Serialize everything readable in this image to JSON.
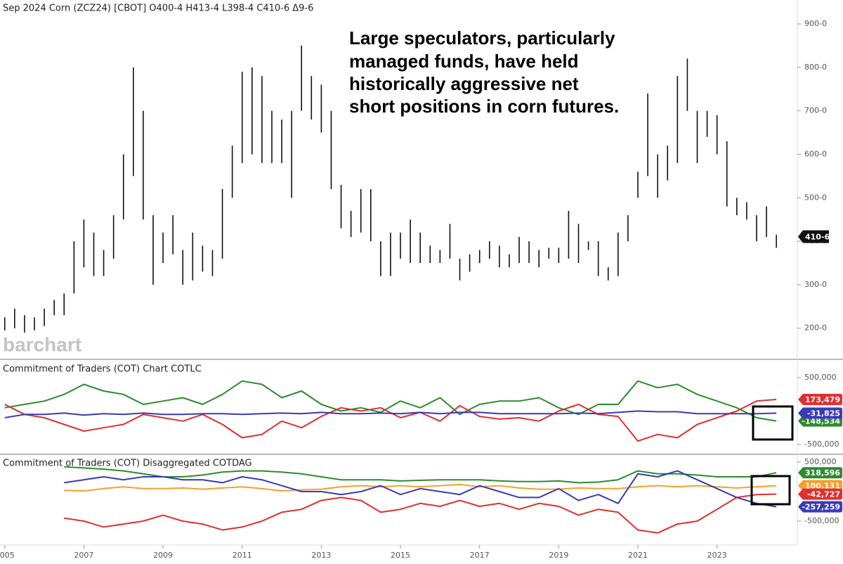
{
  "chart_data": [
    {
      "type": "ohlc",
      "title": "Sep 2024 Corn (ZCZ24) [CBOT] O400-4 H413-4 L398-4 C410-6 Δ9-6",
      "annotation": [
        "Large speculators, particularly",
        "managed funds, have held",
        "historically aggressive net",
        "short positions in corn futures."
      ],
      "watermark": "barchart",
      "color": "#111111",
      "x": [
        2005.0,
        2005.25,
        2005.5,
        2005.75,
        2006.0,
        2006.25,
        2006.5,
        2006.75,
        2007.0,
        2007.25,
        2007.5,
        2007.75,
        2008.0,
        2008.25,
        2008.5,
        2008.75,
        2009.0,
        2009.25,
        2009.5,
        2009.75,
        2010.0,
        2010.25,
        2010.5,
        2010.75,
        2011.0,
        2011.25,
        2011.5,
        2011.75,
        2012.0,
        2012.25,
        2012.5,
        2012.75,
        2013.0,
        2013.25,
        2013.5,
        2013.75,
        2014.0,
        2014.25,
        2014.5,
        2014.75,
        2015.0,
        2015.25,
        2015.5,
        2015.75,
        2016.0,
        2016.25,
        2016.5,
        2016.75,
        2017.0,
        2017.25,
        2017.5,
        2017.75,
        2018.0,
        2018.25,
        2018.5,
        2018.75,
        2019.0,
        2019.25,
        2019.5,
        2019.75,
        2020.0,
        2020.25,
        2020.5,
        2020.75,
        2021.0,
        2021.25,
        2021.5,
        2021.75,
        2022.0,
        2022.25,
        2022.5,
        2022.75,
        2023.0,
        2023.25,
        2023.5,
        2023.75,
        2024.0,
        2024.25,
        2024.5
      ],
      "high": [
        225,
        245,
        230,
        225,
        245,
        265,
        280,
        400,
        450,
        420,
        380,
        460,
        600,
        800,
        700,
        460,
        420,
        460,
        380,
        420,
        390,
        380,
        520,
        620,
        790,
        800,
        780,
        700,
        680,
        700,
        850,
        780,
        760,
        700,
        530,
        470,
        520,
        520,
        400,
        420,
        420,
        450,
        420,
        390,
        380,
        440,
        360,
        370,
        380,
        400,
        390,
        370,
        410,
        400,
        380,
        385,
        385,
        470,
        440,
        400,
        400,
        340,
        420,
        460,
        560,
        740,
        600,
        620,
        780,
        820,
        700,
        700,
        690,
        630,
        500,
        490,
        460,
        480,
        415
      ],
      "low": [
        195,
        200,
        190,
        195,
        205,
        230,
        230,
        280,
        340,
        320,
        320,
        360,
        450,
        550,
        450,
        300,
        350,
        370,
        300,
        310,
        330,
        320,
        360,
        500,
        580,
        600,
        580,
        580,
        580,
        500,
        700,
        680,
        650,
        520,
        430,
        410,
        420,
        400,
        320,
        320,
        360,
        350,
        350,
        350,
        350,
        360,
        310,
        330,
        350,
        360,
        340,
        340,
        350,
        350,
        340,
        360,
        350,
        360,
        350,
        380,
        320,
        310,
        320,
        400,
        500,
        550,
        500,
        540,
        580,
        700,
        580,
        640,
        600,
        480,
        460,
        450,
        400,
        410,
        385
      ],
      "last_price": {
        "value": 410.75,
        "label": "410-6"
      },
      "xlim": [
        2004.88,
        2025.03
      ],
      "ylim": [
        130,
        955
      ],
      "yticks": [
        {
          "value": 200,
          "label": "200-0"
        },
        {
          "value": 300,
          "label": "300-0"
        },
        {
          "value": 400,
          "label": "400-0"
        },
        {
          "value": 500,
          "label": "500-0"
        },
        {
          "value": 600,
          "label": "600-0"
        },
        {
          "value": 700,
          "label": "700-0"
        },
        {
          "value": 800,
          "label": "800-0"
        },
        {
          "value": 900,
          "label": "900-0"
        }
      ]
    },
    {
      "type": "line",
      "title": "Commitment of Traders (COT) Chart COTLC",
      "x": [
        2005.0,
        2005.5,
        2006.0,
        2006.5,
        2007.0,
        2007.5,
        2008.0,
        2008.5,
        2009.0,
        2009.5,
        2010.0,
        2010.5,
        2011.0,
        2011.5,
        2012.0,
        2012.5,
        2013.0,
        2013.5,
        2014.0,
        2014.5,
        2015.0,
        2015.5,
        2016.0,
        2016.5,
        2017.0,
        2017.5,
        2018.0,
        2018.5,
        2019.0,
        2019.5,
        2020.0,
        2020.5,
        2021.0,
        2021.5,
        2022.0,
        2022.5,
        2023.0,
        2023.5,
        2024.0,
        2024.5
      ],
      "series": [
        {
          "color": "#2e8b2e",
          "values": [
            50000,
            100000,
            150000,
            250000,
            400000,
            300000,
            250000,
            100000,
            150000,
            200000,
            100000,
            250000,
            450000,
            400000,
            200000,
            300000,
            100000,
            0,
            50000,
            -20000,
            150000,
            50000,
            200000,
            -50000,
            100000,
            150000,
            150000,
            200000,
            50000,
            -50000,
            100000,
            100000,
            450000,
            350000,
            400000,
            250000,
            150000,
            50000,
            -100000,
            -148534
          ],
          "value_labels": [
            null,
            null,
            null,
            null,
            null,
            null,
            null,
            null,
            null,
            null,
            null,
            null,
            null,
            null,
            null,
            null,
            null,
            null,
            null,
            null,
            null,
            null,
            null,
            null,
            null,
            null,
            null,
            null,
            null,
            null,
            null,
            null,
            null,
            null,
            null,
            null,
            null,
            null,
            null,
            "-148,534"
          ]
        },
        {
          "color": "#e03030",
          "values": [
            100000,
            -50000,
            -100000,
            -200000,
            -300000,
            -250000,
            -200000,
            -50000,
            -100000,
            -150000,
            -50000,
            -200000,
            -400000,
            -350000,
            -150000,
            -250000,
            -80000,
            50000,
            0,
            50000,
            -100000,
            -20000,
            -150000,
            80000,
            -80000,
            -120000,
            -100000,
            -150000,
            0,
            100000,
            -50000,
            -80000,
            -450000,
            -350000,
            -400000,
            -200000,
            -100000,
            0,
            150000,
            173479
          ],
          "value_labels": [
            null,
            null,
            null,
            null,
            null,
            null,
            null,
            null,
            null,
            null,
            null,
            null,
            null,
            null,
            null,
            null,
            null,
            null,
            null,
            null,
            null,
            null,
            null,
            null,
            null,
            null,
            null,
            null,
            null,
            null,
            null,
            null,
            null,
            null,
            null,
            null,
            null,
            null,
            null,
            "173,479"
          ]
        },
        {
          "color": "#3a3ab8",
          "values": [
            -100000,
            -50000,
            -50000,
            -30000,
            -60000,
            -40000,
            -50000,
            -30000,
            -50000,
            -50000,
            -40000,
            -40000,
            -50000,
            -40000,
            -30000,
            -40000,
            -20000,
            -40000,
            -40000,
            -30000,
            -40000,
            -20000,
            -40000,
            -20000,
            -20000,
            -40000,
            -40000,
            -40000,
            -40000,
            -30000,
            -40000,
            -20000,
            0,
            -10000,
            -10000,
            -40000,
            -40000,
            -40000,
            -40000,
            -31825
          ],
          "value_labels": [
            null,
            null,
            null,
            null,
            null,
            null,
            null,
            null,
            null,
            null,
            null,
            null,
            null,
            null,
            null,
            null,
            null,
            null,
            null,
            null,
            null,
            null,
            null,
            null,
            null,
            null,
            null,
            null,
            null,
            null,
            null,
            null,
            null,
            null,
            null,
            null,
            null,
            null,
            null,
            "-31,825"
          ]
        }
      ],
      "xlim": [
        2004.88,
        2025.03
      ],
      "ylim": [
        -637000,
        753000
      ],
      "yticks": [
        {
          "value": -500000,
          "label": "-500,000"
        },
        {
          "value": 500000,
          "label": "500,000"
        }
      ]
    },
    {
      "type": "line",
      "title": "Commitment of Traders (COT) Disaggregated COTDAG",
      "x": [
        2006.5,
        2007.0,
        2007.5,
        2008.0,
        2008.5,
        2009.0,
        2009.5,
        2010.0,
        2010.5,
        2011.0,
        2011.5,
        2012.0,
        2012.5,
        2013.0,
        2013.5,
        2014.0,
        2014.5,
        2015.0,
        2015.5,
        2016.0,
        2016.5,
        2017.0,
        2017.5,
        2018.0,
        2018.5,
        2019.0,
        2019.5,
        2020.0,
        2020.5,
        2021.0,
        2021.5,
        2022.0,
        2022.5,
        2023.0,
        2023.5,
        2024.0,
        2024.5
      ],
      "series": [
        {
          "color": "#2e8b2e",
          "values": [
            420000,
            400000,
            380000,
            350000,
            300000,
            250000,
            250000,
            280000,
            330000,
            350000,
            350000,
            330000,
            300000,
            250000,
            200000,
            200000,
            200000,
            180000,
            190000,
            200000,
            200000,
            200000,
            180000,
            170000,
            170000,
            180000,
            150000,
            160000,
            200000,
            350000,
            300000,
            300000,
            280000,
            250000,
            250000,
            250000,
            318596
          ],
          "value_labels": [
            null,
            null,
            null,
            null,
            null,
            null,
            null,
            null,
            null,
            null,
            null,
            null,
            null,
            null,
            null,
            null,
            null,
            null,
            null,
            null,
            null,
            null,
            null,
            null,
            null,
            null,
            null,
            null,
            null,
            null,
            null,
            null,
            null,
            null,
            null,
            null,
            "318,596"
          ]
        },
        {
          "color": "#f5a030",
          "values": [
            20000,
            10000,
            50000,
            80000,
            50000,
            50000,
            60000,
            40000,
            60000,
            80000,
            50000,
            10000,
            30000,
            40000,
            80000,
            100000,
            80000,
            100000,
            80000,
            100000,
            120000,
            80000,
            100000,
            60000,
            40000,
            40000,
            60000,
            50000,
            50000,
            80000,
            100000,
            80000,
            100000,
            80000,
            60000,
            80000,
            100131
          ],
          "value_labels": [
            null,
            null,
            null,
            null,
            null,
            null,
            null,
            null,
            null,
            null,
            null,
            null,
            null,
            null,
            null,
            null,
            null,
            null,
            null,
            null,
            null,
            null,
            null,
            null,
            null,
            null,
            null,
            null,
            null,
            null,
            null,
            null,
            null,
            null,
            null,
            null,
            "100,131"
          ]
        },
        {
          "color": "#e03030",
          "values": [
            -450000,
            -500000,
            -600000,
            -550000,
            -500000,
            -400000,
            -500000,
            -550000,
            -650000,
            -600000,
            -500000,
            -350000,
            -300000,
            -150000,
            -100000,
            -150000,
            -350000,
            -300000,
            -200000,
            -250000,
            -150000,
            -250000,
            -200000,
            -300000,
            -200000,
            -250000,
            -400000,
            -300000,
            -350000,
            -650000,
            -700000,
            -550000,
            -500000,
            -300000,
            -100000,
            -50000,
            -42727
          ],
          "value_labels": [
            null,
            null,
            null,
            null,
            null,
            null,
            null,
            null,
            null,
            null,
            null,
            null,
            null,
            null,
            null,
            null,
            null,
            null,
            null,
            null,
            null,
            null,
            null,
            null,
            null,
            null,
            null,
            null,
            null,
            null,
            null,
            null,
            null,
            null,
            null,
            null,
            "-42,727"
          ]
        },
        {
          "color": "#3a3ab8",
          "values": [
            150000,
            200000,
            250000,
            200000,
            250000,
            250000,
            200000,
            200000,
            150000,
            250000,
            200000,
            100000,
            0,
            0,
            -50000,
            0,
            100000,
            -50000,
            50000,
            0,
            -50000,
            100000,
            0,
            -100000,
            -100000,
            50000,
            -150000,
            -50000,
            -200000,
            300000,
            250000,
            350000,
            200000,
            50000,
            -100000,
            -200000,
            -257259
          ],
          "value_labels": [
            null,
            null,
            null,
            null,
            null,
            null,
            null,
            null,
            null,
            null,
            null,
            null,
            null,
            null,
            null,
            null,
            null,
            null,
            null,
            null,
            null,
            null,
            null,
            null,
            null,
            null,
            null,
            null,
            null,
            null,
            null,
            null,
            null,
            null,
            null,
            null,
            "-257,259"
          ]
        }
      ],
      "xlim": [
        2004.88,
        2025.03
      ],
      "ylim": [
        -905000,
        607000
      ],
      "yticks": [
        {
          "value": -500000,
          "label": "-500,000"
        },
        {
          "value": 500000,
          "label": "500,000"
        }
      ],
      "xticks": [
        2005,
        2007,
        2009,
        2011,
        2013,
        2015,
        2017,
        2019,
        2021,
        2023
      ]
    }
  ]
}
